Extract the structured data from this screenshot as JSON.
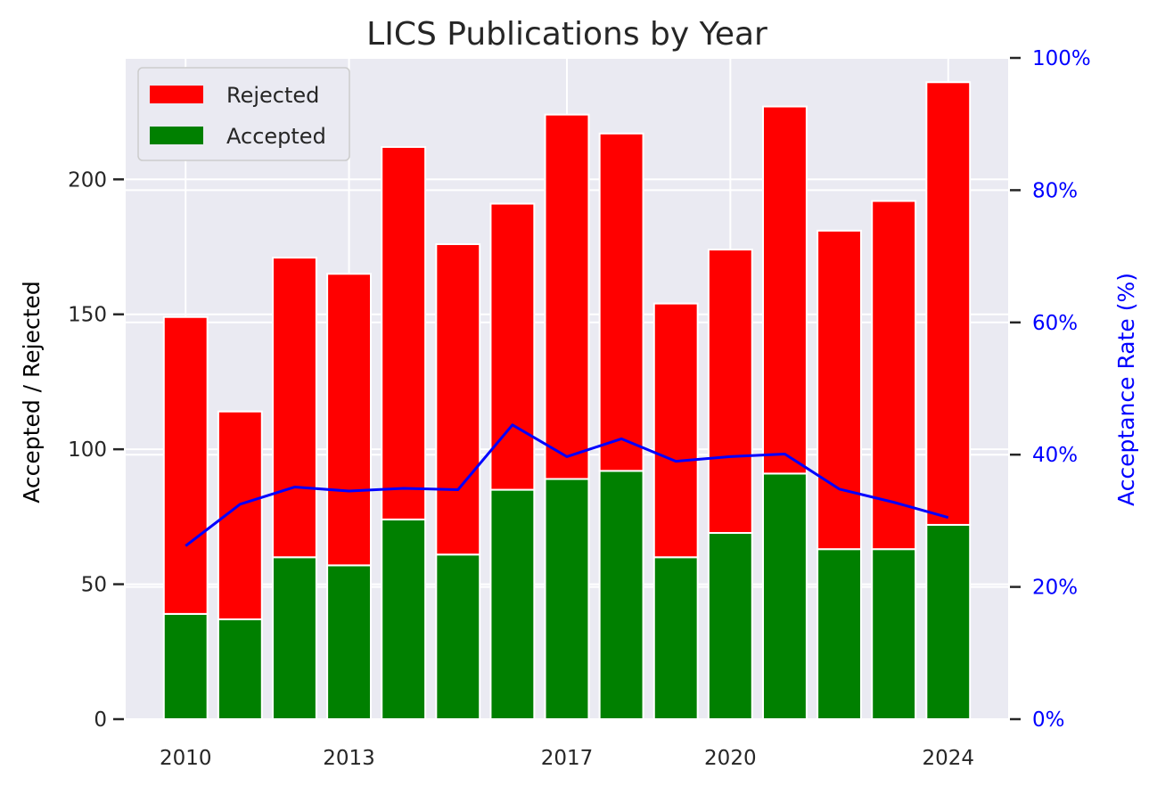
{
  "chart_data": {
    "type": "bar",
    "stacked": true,
    "title": "LICS Publications by Year",
    "ylabel": "Accepted / Rejected",
    "y2label": "Acceptance Rate (%)",
    "ylim": [
      0,
      245
    ],
    "y2lim": [
      0,
      100
    ],
    "xlim": [
      2008.9,
      2025.1
    ],
    "yticks": [
      0,
      50,
      100,
      150,
      200
    ],
    "y2ticks": [
      0,
      20,
      40,
      60,
      80,
      100
    ],
    "y2ticklabels": [
      "0%",
      "20%",
      "40%",
      "60%",
      "80%",
      "100%"
    ],
    "xticks": [
      2010,
      2013,
      2017,
      2020,
      2024
    ],
    "xticklabels": [
      "2010",
      "2013",
      "2017",
      "2020",
      "2024"
    ],
    "categories": [
      2010,
      2011,
      2012,
      2013,
      2014,
      2015,
      2016,
      2017,
      2018,
      2019,
      2020,
      2021,
      2022,
      2023,
      2024
    ],
    "series": [
      {
        "name": "Accepted",
        "color": "#008000",
        "values": [
          39,
          37,
          60,
          57,
          74,
          61,
          85,
          89,
          92,
          60,
          69,
          91,
          63,
          63,
          72
        ]
      },
      {
        "name": "Rejected",
        "color": "#ff0000",
        "values": [
          110,
          77,
          111,
          108,
          138,
          115,
          106,
          135,
          125,
          94,
          105,
          136,
          118,
          129,
          164
        ]
      }
    ],
    "line": {
      "color": "#0000ff",
      "axis": "right",
      "values": [
        26.2,
        32.5,
        35.1,
        34.5,
        34.9,
        34.7,
        44.5,
        39.7,
        42.4,
        39.0,
        39.7,
        40.1,
        34.8,
        32.8,
        30.5
      ]
    },
    "legend": {
      "position": "upper-left",
      "entries": [
        "Rejected",
        "Accepted"
      ]
    },
    "grid": true,
    "colors": {
      "background": "#eaeaf2",
      "grid": "#ffffff",
      "right_axis": "#0000ff",
      "text": "#262626"
    }
  }
}
